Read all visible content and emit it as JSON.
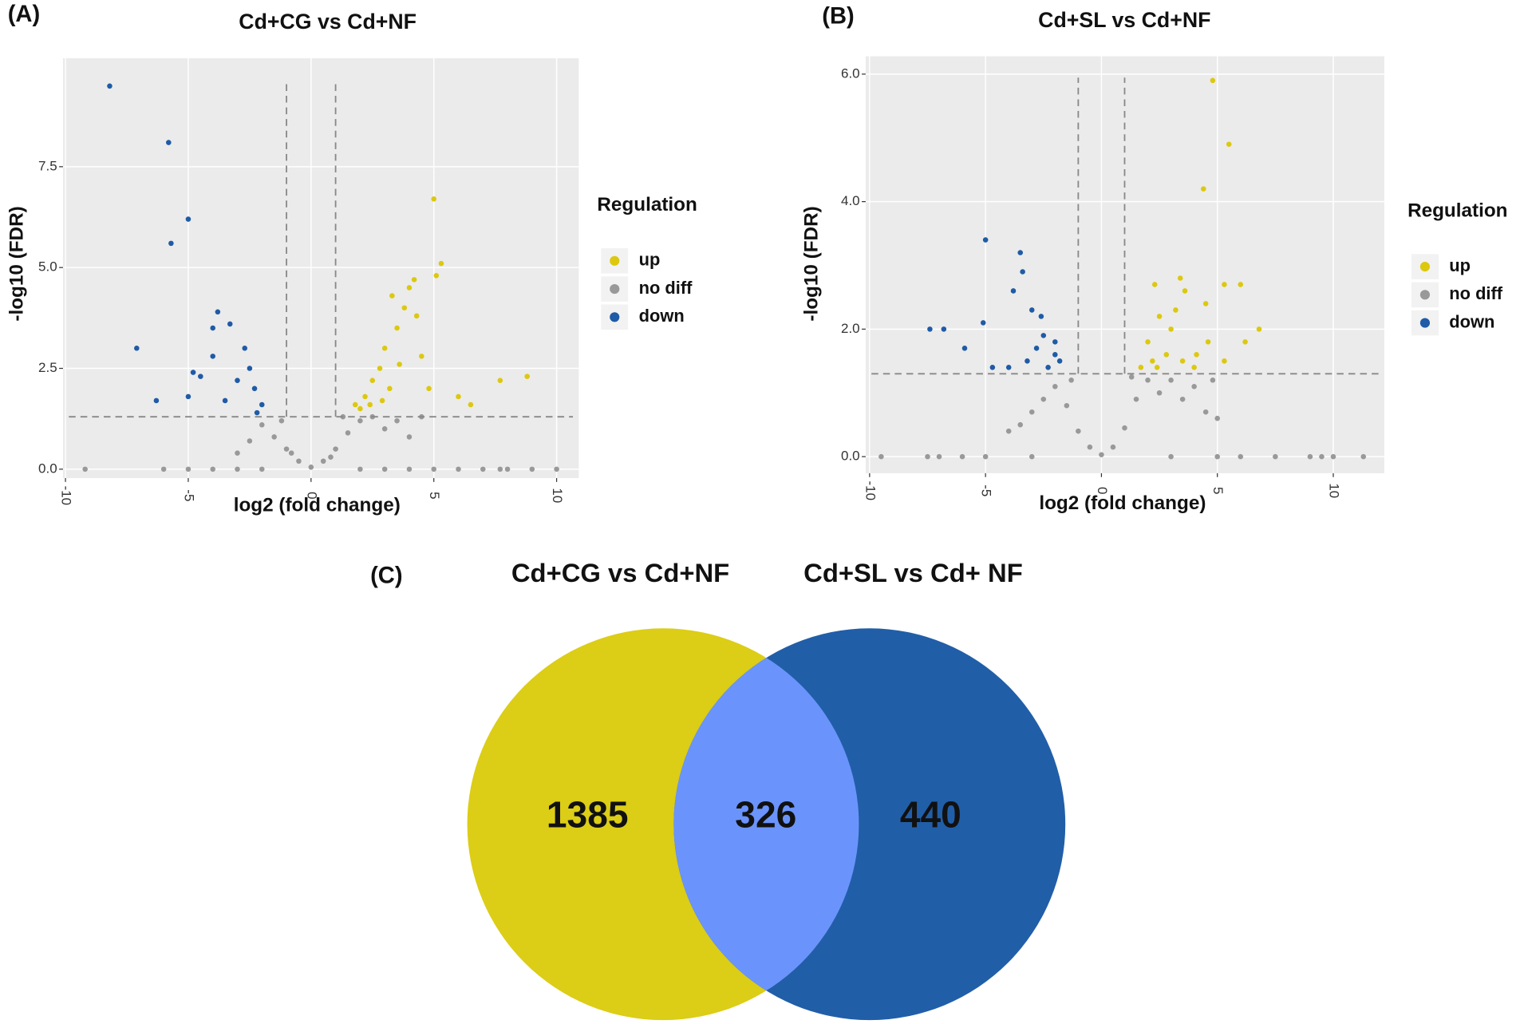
{
  "chart_data": [
    {
      "type": "scatter",
      "label": "(A)",
      "title": "Cd+CG vs Cd+NF",
      "x_label": "log2 (fold change)",
      "y_label": "-log10 (FDR)",
      "legend_title": "Regulation",
      "xlim": [
        -10.1,
        10.9
      ],
      "ylim": [
        -0.22,
        10.19
      ],
      "xticks": [
        -10,
        -5,
        0,
        5,
        10
      ],
      "yticks": [
        {
          "value": 0,
          "label": "0.0"
        },
        2.5,
        {
          "value": 5,
          "label": "5.0"
        },
        7.5
      ],
      "vlines": [
        -1,
        1
      ],
      "hline": 1.3,
      "grid": true,
      "series": [
        {
          "name": "up",
          "color": "#dcc80f",
          "x": [
            2,
            2.2,
            2.5,
            2.8,
            3,
            3.2,
            3.5,
            3.8,
            4,
            4.3,
            4.5,
            5,
            5.3,
            5.1,
            4.2,
            3.3,
            6,
            6.5,
            7.7,
            8.8,
            1.8,
            2.4,
            3.6,
            2.9,
            4.8
          ],
          "values": [
            1.5,
            1.8,
            2.2,
            2.5,
            3.0,
            2.0,
            3.5,
            4.0,
            4.5,
            3.8,
            2.8,
            6.7,
            5.1,
            4.8,
            4.7,
            4.3,
            1.8,
            1.6,
            2.2,
            2.3,
            1.6,
            1.6,
            2.6,
            1.7,
            2.0
          ]
        },
        {
          "name": "no diff",
          "color": "#999999",
          "x": [
            0,
            -0.5,
            0.5,
            -1,
            1,
            -1.5,
            1.5,
            -2,
            2,
            2.5,
            3,
            3.5,
            4,
            4.5,
            -2.5,
            -3,
            -1.2,
            1.3,
            0.8,
            -0.8,
            -9.2,
            -6,
            -5,
            -4,
            -3,
            -2,
            2,
            3,
            4,
            5,
            6,
            7,
            8,
            9,
            10,
            7.7
          ],
          "values": [
            0.05,
            0.2,
            0.2,
            0.5,
            0.5,
            0.8,
            0.9,
            1.1,
            1.2,
            1.3,
            1.0,
            1.2,
            0.8,
            1.3,
            0.7,
            0.4,
            1.2,
            1.3,
            0.3,
            0.4,
            0,
            0,
            0,
            0,
            0,
            0,
            0,
            0,
            0,
            0,
            0,
            0,
            0,
            0,
            0,
            0
          ]
        },
        {
          "name": "down",
          "color": "#1f5ba6",
          "x": [
            -8.2,
            -5.8,
            -5,
            -5.7,
            -7.1,
            -6.3,
            -3.8,
            -3.3,
            -4,
            -2.5,
            -2.3,
            -2,
            -3,
            -4.5,
            -5,
            -3.5,
            -4,
            -2.7,
            -4.8,
            -2.2
          ],
          "values": [
            9.5,
            8.1,
            6.2,
            5.6,
            3.0,
            1.7,
            3.9,
            3.6,
            3.5,
            2.5,
            2.0,
            1.6,
            2.2,
            2.3,
            1.8,
            1.7,
            2.8,
            3.0,
            2.4,
            1.4
          ]
        }
      ]
    },
    {
      "type": "scatter",
      "label": "(B)",
      "title": "Cd+SL vs Cd+NF",
      "x_label": "log2 (fold change)",
      "y_label": "-log10 (FDR)",
      "legend_title": "Regulation",
      "xlim": [
        -10.17,
        12.2
      ],
      "ylim": [
        -0.26,
        6.28
      ],
      "xticks": [
        -10,
        -5,
        0,
        5,
        10
      ],
      "yticks": [
        {
          "value": 0,
          "label": "0.0"
        },
        {
          "value": 2,
          "label": "2.0"
        },
        {
          "value": 4,
          "label": "4.0"
        },
        {
          "value": 6,
          "label": "6.0"
        }
      ],
      "vlines": [
        -1,
        1
      ],
      "hline": 1.3,
      "grid": true,
      "series": [
        {
          "name": "up",
          "color": "#dcc80f",
          "x": [
            4.8,
            5.5,
            4.4,
            2.3,
            3.4,
            3.6,
            5.3,
            6,
            6.8,
            4.5,
            2.5,
            2,
            2.2,
            2.8,
            3,
            3.5,
            4,
            4.6,
            6.2,
            5.3,
            1.7,
            2.4,
            3.2,
            4.1
          ],
          "values": [
            5.9,
            4.9,
            4.2,
            2.7,
            2.8,
            2.6,
            2.7,
            2.7,
            2.0,
            2.4,
            2.2,
            1.8,
            1.5,
            1.6,
            2.0,
            1.5,
            1.4,
            1.8,
            1.8,
            1.5,
            1.4,
            1.4,
            2.3,
            1.6
          ]
        },
        {
          "name": "no diff",
          "color": "#999999",
          "x": [
            0,
            -0.5,
            0.5,
            -1,
            1,
            -1.5,
            1.5,
            -2,
            2,
            -2.5,
            2.5,
            3,
            3.5,
            4,
            4.5,
            5,
            -3,
            -3.5,
            -4,
            -1.3,
            1.3,
            4.8,
            -9.5,
            -7.5,
            -7,
            -6,
            -5,
            -3,
            3,
            5,
            6,
            7.5,
            9,
            9.5,
            10,
            11.3
          ],
          "values": [
            0.03,
            0.15,
            0.15,
            0.4,
            0.45,
            0.8,
            0.9,
            1.1,
            1.2,
            0.9,
            1.0,
            1.2,
            0.9,
            1.1,
            0.7,
            0.6,
            0.7,
            0.5,
            0.4,
            1.2,
            1.25,
            1.2,
            0,
            0,
            0,
            0,
            0,
            0,
            0,
            0,
            0,
            0,
            0,
            0,
            0,
            0
          ]
        },
        {
          "name": "down",
          "color": "#1f5ba6",
          "x": [
            -5,
            -3.5,
            -3.4,
            -3.8,
            -7.4,
            -6.8,
            -5.1,
            -5.9,
            -4.7,
            -3,
            -2.6,
            -2.5,
            -2.8,
            -2,
            -2.3,
            -4,
            -1.8,
            -3.2,
            -2
          ],
          "values": [
            3.4,
            3.2,
            2.9,
            2.6,
            2.0,
            2.0,
            2.1,
            1.7,
            1.4,
            2.3,
            2.2,
            1.9,
            1.7,
            1.6,
            1.4,
            1.4,
            1.5,
            1.5,
            1.8
          ]
        }
      ]
    },
    {
      "type": "venn",
      "label": "(C)",
      "sets": [
        {
          "name": "Cd+CG vs Cd+NF",
          "color": "#dccd16"
        },
        {
          "name": "Cd+SL vs Cd+ NF",
          "color": "#215ea8"
        }
      ],
      "overlap_color": "#6a94fc",
      "values": [
        1385,
        326,
        440
      ]
    }
  ]
}
